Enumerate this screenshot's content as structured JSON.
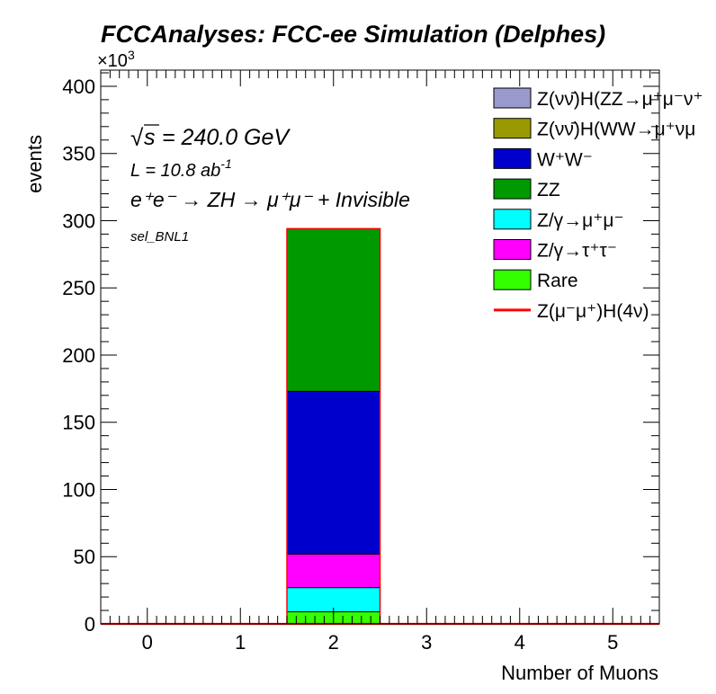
{
  "chart_data": {
    "type": "bar",
    "title": "FCCAnalyses: FCC-ee Simulation (Delphes)",
    "xlabel": "Number of Muons",
    "ylabel": "events",
    "y_multiplier": "×10",
    "y_multiplier_exp": "3",
    "xlim": [
      -0.5,
      5.5
    ],
    "ylim": [
      0,
      412
    ],
    "x_ticks": [
      "0",
      "1",
      "2",
      "3",
      "4",
      "5"
    ],
    "y_ticks": [
      "0",
      "50",
      "100",
      "150",
      "200",
      "250",
      "300",
      "350",
      "400"
    ],
    "annotations": {
      "sqrt_s_symbol": "√",
      "sqrt_s_var": "s",
      "sqrt_s_value": "= 240.0 GeV",
      "lumi_prefix": "L = 10.8 ab",
      "lumi_exp": "-1",
      "process": "e⁺e⁻ → ZH → μ⁺μ⁻ + Invisible",
      "selection": "sel_BNL1"
    },
    "legend_position": "top-right",
    "series": [
      {
        "name": "Z(νν̄)H(ZZ→μ⁺μ⁻ν⁺",
        "color": "#9999cc",
        "values": [
          0,
          0,
          0,
          0,
          0,
          0
        ]
      },
      {
        "name": "Z(νν̄)H(WW→μ⁺νμ",
        "color": "#999900",
        "values": [
          0,
          0,
          0,
          0,
          0,
          0
        ]
      },
      {
        "name": "W⁺W⁻",
        "color": "#0000cc",
        "values": [
          0,
          0,
          121,
          0,
          0,
          0
        ]
      },
      {
        "name": "ZZ",
        "color": "#009900",
        "values": [
          0,
          0,
          121,
          0,
          0,
          0
        ]
      },
      {
        "name": "Z/γ→μ⁺μ⁻",
        "color": "#00ffff",
        "values": [
          0,
          0,
          18,
          0,
          0,
          0
        ]
      },
      {
        "name": "Z/γ→τ⁺τ⁻",
        "color": "#ff00ff",
        "values": [
          0,
          0,
          25,
          0,
          0,
          0
        ]
      },
      {
        "name": "Rare",
        "color": "#33ff00",
        "values": [
          0,
          0,
          9,
          0,
          0,
          0
        ]
      }
    ],
    "signal": {
      "name": "Z(μ⁻μ⁺)H(4ν)",
      "color": "#ff0000",
      "values": [
        0,
        0,
        0,
        0,
        0,
        0
      ]
    },
    "categories": [
      0,
      1,
      2,
      3,
      4,
      5
    ],
    "stack_order": [
      "Rare",
      "Z/γ→μ⁺μ⁻",
      "Z/γ→τ⁺τ⁻",
      "W⁺W⁻",
      "ZZ",
      "Z(νν̄)H(WW→μ⁺νμ",
      "Z(νν̄)H(ZZ→μ⁺μ⁻ν⁺"
    ]
  }
}
